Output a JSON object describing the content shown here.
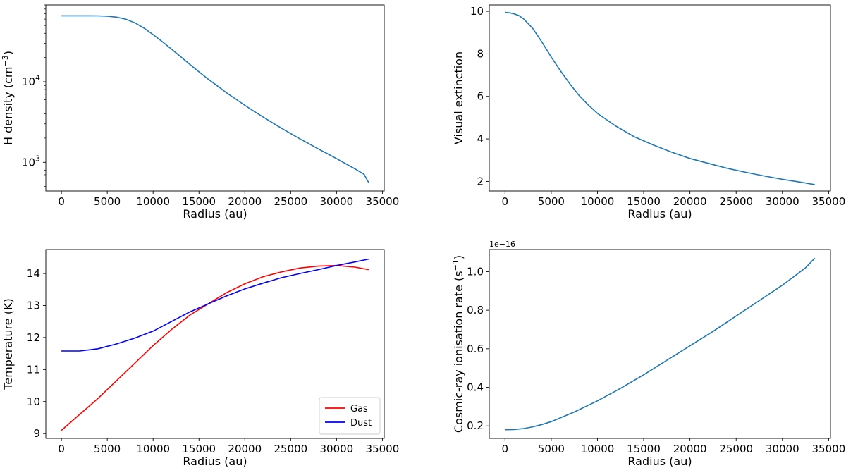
{
  "chart_data": [
    {
      "type": "line",
      "xlabel": "Radius (au)",
      "ylabel": "H density (cm",
      "ylabel_sup": "−3",
      "ylabel_end": ")",
      "yscale": "log",
      "xlim": [
        -1700,
        35200
      ],
      "ylim": [
        440,
        90000
      ],
      "xticks": [
        0,
        5000,
        10000,
        15000,
        20000,
        25000,
        30000,
        35000
      ],
      "xtick_labels": [
        "0",
        "5000",
        "10000",
        "15000",
        "20000",
        "25000",
        "30000",
        "35000"
      ],
      "yticks": [
        1000,
        10000
      ],
      "ytick_labels": [
        {
          "base": "10",
          "exp": "3"
        },
        {
          "base": "10",
          "exp": "4"
        }
      ],
      "color": "#1f77b4",
      "series": [
        {
          "x": [
            0,
            2000,
            4000,
            5000,
            6000,
            7000,
            8000,
            9000,
            10000,
            11000,
            12000,
            13000,
            14000,
            15000,
            16000,
            17000,
            18000,
            19000,
            20000,
            21000,
            22000,
            23000,
            24000,
            25000,
            26000,
            27000,
            28000,
            29000,
            30000,
            31000,
            32000,
            33000,
            33500
          ],
          "values": [
            66000,
            66000,
            65800,
            65200,
            63500,
            60000,
            54000,
            46500,
            38500,
            31500,
            25500,
            20500,
            16500,
            13300,
            10800,
            8900,
            7300,
            6100,
            5100,
            4300,
            3650,
            3100,
            2650,
            2280,
            1960,
            1700,
            1470,
            1280,
            1110,
            960,
            830,
            710,
            560
          ]
        }
      ]
    },
    {
      "type": "line",
      "xlabel": "Radius (au)",
      "ylabel": "Visual extinction",
      "xlim": [
        -1700,
        35200
      ],
      "ylim": [
        1.55,
        10.3
      ],
      "xticks": [
        0,
        5000,
        10000,
        15000,
        20000,
        25000,
        30000,
        35000
      ],
      "xtick_labels": [
        "0",
        "5000",
        "10000",
        "15000",
        "20000",
        "25000",
        "30000",
        "35000"
      ],
      "yticks": [
        2,
        4,
        6,
        8,
        10
      ],
      "ytick_labels": [
        "2",
        "4",
        "6",
        "8",
        "10"
      ],
      "color": "#1f77b4",
      "series": [
        {
          "x": [
            0,
            500,
            1000,
            1500,
            2000,
            3000,
            4000,
            5000,
            6000,
            7000,
            8000,
            9000,
            10000,
            12000,
            14000,
            16000,
            18000,
            20000,
            22000,
            24000,
            26000,
            28000,
            30000,
            32000,
            33500
          ],
          "values": [
            9.95,
            9.93,
            9.88,
            9.8,
            9.65,
            9.2,
            8.55,
            7.85,
            7.2,
            6.6,
            6.05,
            5.6,
            5.2,
            4.6,
            4.1,
            3.72,
            3.38,
            3.08,
            2.85,
            2.62,
            2.43,
            2.26,
            2.1,
            1.96,
            1.85
          ]
        }
      ]
    },
    {
      "type": "line",
      "xlabel": "Radius (au)",
      "ylabel": "Temperature (K)",
      "xlim": [
        -1700,
        35200
      ],
      "ylim": [
        8.85,
        14.75
      ],
      "xticks": [
        0,
        5000,
        10000,
        15000,
        20000,
        25000,
        30000,
        35000
      ],
      "xtick_labels": [
        "0",
        "5000",
        "10000",
        "15000",
        "20000",
        "25000",
        "30000",
        "35000"
      ],
      "yticks": [
        9,
        10,
        11,
        12,
        13,
        14
      ],
      "ytick_labels": [
        "9",
        "10",
        "11",
        "12",
        "13",
        "14"
      ],
      "legend": "lower-right",
      "series": [
        {
          "name": "Gas",
          "color": "#ff0000",
          "x": [
            0,
            2000,
            4000,
            6000,
            8000,
            10000,
            12000,
            14000,
            16000,
            18000,
            20000,
            22000,
            24000,
            26000,
            28000,
            30000,
            32000,
            33500
          ],
          "values": [
            9.1,
            9.6,
            10.1,
            10.65,
            11.2,
            11.75,
            12.25,
            12.7,
            13.05,
            13.4,
            13.68,
            13.9,
            14.05,
            14.17,
            14.23,
            14.25,
            14.2,
            14.12
          ]
        },
        {
          "name": "Dust",
          "color": "#0000ff",
          "x": [
            0,
            2000,
            4000,
            6000,
            8000,
            10000,
            12000,
            14000,
            16000,
            18000,
            20000,
            22000,
            24000,
            26000,
            28000,
            30000,
            32000,
            33500
          ],
          "values": [
            11.58,
            11.58,
            11.65,
            11.8,
            11.98,
            12.2,
            12.5,
            12.8,
            13.05,
            13.3,
            13.52,
            13.7,
            13.87,
            14.0,
            14.12,
            14.25,
            14.36,
            14.45
          ]
        }
      ]
    },
    {
      "type": "line",
      "xlabel": "Radius (au)",
      "ylabel": "Cosmic-ray ionisation rate (s",
      "ylabel_sup": "−1",
      "ylabel_end": ")",
      "offset_text": "1e−16",
      "xlim": [
        -1700,
        35200
      ],
      "ylim": [
        0.135,
        1.115
      ],
      "xticks": [
        0,
        5000,
        10000,
        15000,
        20000,
        25000,
        30000,
        35000
      ],
      "xtick_labels": [
        "0",
        "5000",
        "10000",
        "15000",
        "20000",
        "25000",
        "30000",
        "35000"
      ],
      "yticks": [
        0.2,
        0.4,
        0.6,
        0.8,
        1.0
      ],
      "ytick_labels": [
        "0.2",
        "0.4",
        "0.6",
        "0.8",
        "1.0"
      ],
      "color": "#1f77b4",
      "series": [
        {
          "x": [
            0,
            1000,
            2000,
            3000,
            4000,
            5000,
            7500,
            10000,
            12500,
            15000,
            17500,
            20000,
            22500,
            25000,
            27500,
            30000,
            32500,
            33500
          ],
          "values": [
            0.18,
            0.181,
            0.186,
            0.195,
            0.207,
            0.222,
            0.272,
            0.33,
            0.395,
            0.465,
            0.54,
            0.615,
            0.69,
            0.77,
            0.85,
            0.93,
            1.02,
            1.07
          ]
        }
      ]
    }
  ]
}
